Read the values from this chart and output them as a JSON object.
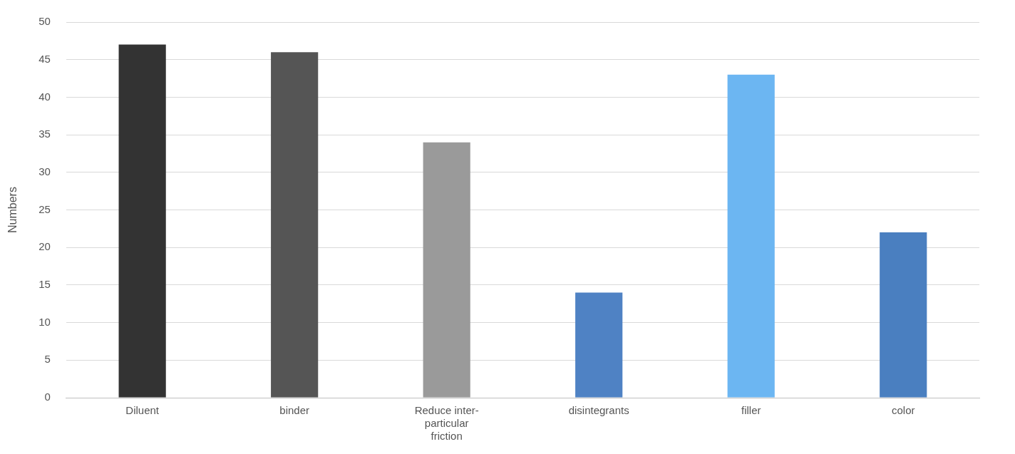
{
  "chart_data": {
    "type": "bar",
    "ylabel": "Numbers",
    "categories": [
      "Diluent",
      "binder",
      "Reduce inter-particular friction",
      "disintegrants",
      "filler",
      "color"
    ],
    "values": [
      47,
      46,
      34,
      14,
      43,
      22
    ],
    "colors": [
      "#333333",
      "#555555",
      "#9a9a9a",
      "#4f82c4",
      "#6cb6f2",
      "#4a7fc0"
    ],
    "ylim": [
      0,
      50
    ],
    "yticks": [
      0,
      5,
      10,
      15,
      20,
      25,
      30,
      35,
      40,
      45,
      50
    ],
    "grid": "y",
    "legend": false
  }
}
